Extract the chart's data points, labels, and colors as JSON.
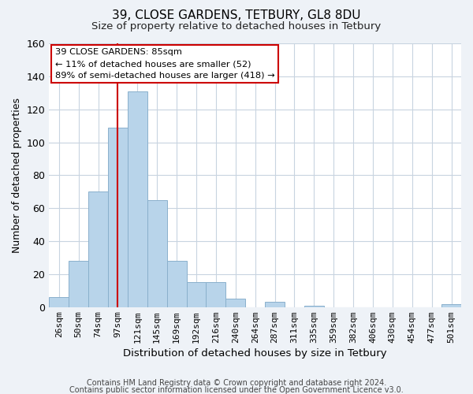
{
  "title1": "39, CLOSE GARDENS, TETBURY, GL8 8DU",
  "title2": "Size of property relative to detached houses in Tetbury",
  "xlabel": "Distribution of detached houses by size in Tetbury",
  "ylabel": "Number of detached properties",
  "bar_labels": [
    "26sqm",
    "50sqm",
    "74sqm",
    "97sqm",
    "121sqm",
    "145sqm",
    "169sqm",
    "192sqm",
    "216sqm",
    "240sqm",
    "264sqm",
    "287sqm",
    "311sqm",
    "335sqm",
    "359sqm",
    "382sqm",
    "406sqm",
    "430sqm",
    "454sqm",
    "477sqm",
    "501sqm"
  ],
  "bar_values": [
    6,
    28,
    70,
    109,
    131,
    65,
    28,
    15,
    15,
    5,
    0,
    3,
    0,
    1,
    0,
    0,
    0,
    0,
    0,
    0,
    2
  ],
  "bar_color": "#b8d4ea",
  "bar_edge_color": "#8ab0cc",
  "ylim": [
    0,
    160
  ],
  "yticks": [
    0,
    20,
    40,
    60,
    80,
    100,
    120,
    140,
    160
  ],
  "vline_x": 3.5,
  "vline_color": "#cc0000",
  "ann_line1": "39 CLOSE GARDENS: 85sqm",
  "ann_line2": "← 11% of detached houses are smaller (52)",
  "ann_line3": "89% of semi-detached houses are larger (418) →",
  "footer1": "Contains HM Land Registry data © Crown copyright and database right 2024.",
  "footer2": "Contains public sector information licensed under the Open Government Licence v3.0.",
  "background_color": "#eef2f7",
  "plot_background": "#ffffff",
  "grid_color": "#c8d4e0"
}
